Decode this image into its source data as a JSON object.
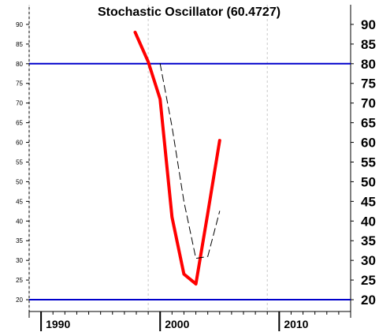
{
  "chart_data": {
    "type": "line",
    "title": "Stochastic Oscillator (60.4727)",
    "xlabel": "",
    "ylabel": "",
    "xlim": [
      1989,
      2016
    ],
    "ylim": [
      17,
      95
    ],
    "y_ticks": [
      20,
      25,
      30,
      35,
      40,
      45,
      50,
      55,
      60,
      65,
      70,
      75,
      80,
      85,
      90
    ],
    "x_ticks": [
      1990,
      2000,
      2010
    ],
    "x_minor_ticks": [
      1991,
      1992,
      1993,
      1994,
      1995,
      1996,
      1997,
      1998,
      1999,
      2001,
      2002,
      2003,
      2004,
      2005,
      2006,
      2007,
      2008,
      2009,
      2011,
      2012,
      2013,
      2014,
      2015
    ],
    "grid": {
      "vertical_dashed_at": [
        1989,
        1999,
        2009
      ]
    },
    "reference_lines": [
      {
        "y": 80,
        "color": "#0000cc"
      },
      {
        "y": 20,
        "color": "#0000cc"
      }
    ],
    "series": [
      {
        "style": "solid",
        "color": "#ff0000",
        "points": [
          [
            1997.9,
            88
          ],
          [
            1999,
            80.5
          ],
          [
            2000,
            71
          ],
          [
            2001,
            41
          ],
          [
            2002,
            26.5
          ],
          [
            2003,
            24
          ],
          [
            2004,
            42
          ],
          [
            2005,
            60.5
          ]
        ]
      },
      {
        "style": "dashed",
        "color": "#000000",
        "points": [
          [
            2000,
            80
          ],
          [
            2001,
            64
          ],
          [
            2002,
            45
          ],
          [
            2003,
            30.5
          ],
          [
            2004,
            31
          ],
          [
            2005,
            42.5
          ]
        ]
      }
    ]
  }
}
